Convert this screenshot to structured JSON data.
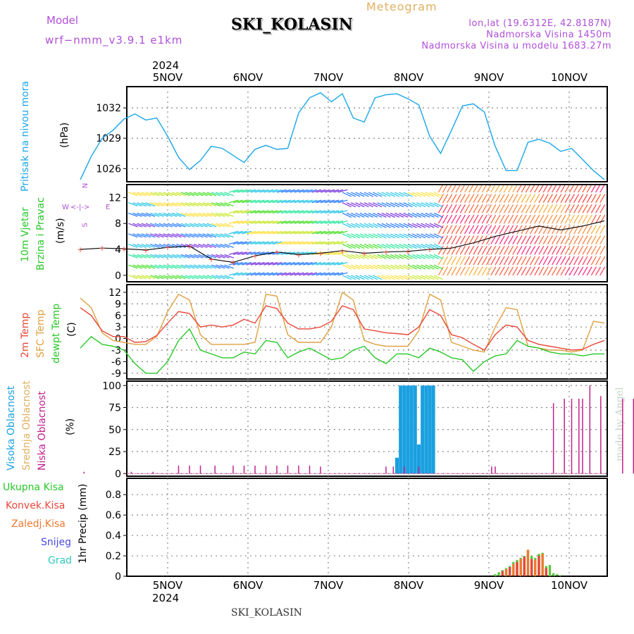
{
  "header": {
    "model_label": "Model",
    "model_name": "wrf−nmm_v3.9.1  e1km",
    "title": "SKI_KOLASIN",
    "meteogram": "Meteogram",
    "lonlat": "lon,lat (19.6312E, 42.8187N)",
    "elevation": "Nadmorska Visina 1450m",
    "model_elevation": "Nadmorska Visina u modelu 1683.27m",
    "year_top": "2024",
    "year_bottom": "2024",
    "footer_station": "SKI_KOLASIN",
    "watermark": "made by Angel"
  },
  "colors": {
    "pressure": "#1aa7e8",
    "t2m": "#e8473a",
    "sfc": "#e0a040",
    "dew": "#28c828",
    "high_cloud": "#1aa0e0",
    "low_cloud": "#c0208c",
    "precip_total": "#5cc840",
    "precip_conv": "#e8473a",
    "precip_frz": "#f07830",
    "snow": "#4a48e0",
    "grad": "#30c8c0",
    "purple_text": "#b04fd8"
  },
  "chart_data": [
    {
      "type": "line",
      "panel": "pressure",
      "ylabel_main": "Pritisak na nivou mora",
      "ylabel_unit": "(hPa)",
      "x_tick_labels": [
        "5NOV",
        "6NOV",
        "7NOV",
        "8NOV",
        "9NOV",
        "10NOV"
      ],
      "yticks": [
        1026,
        1029,
        1032
      ],
      "ylim": [
        1024.7,
        1034.1
      ],
      "grid": true,
      "series": [
        {
          "x_hours": [
            0,
            3,
            6,
            9,
            12,
            15,
            18,
            21,
            24,
            27,
            30,
            33,
            36,
            39,
            42,
            45,
            48,
            51,
            54,
            57,
            60,
            63,
            66,
            69,
            72,
            75,
            78,
            81,
            84,
            87,
            90,
            93,
            96,
            99,
            102,
            105,
            108,
            111,
            114,
            117,
            120,
            123,
            126,
            129,
            132,
            135,
            138,
            141,
            144
          ],
          "values": [
            1024.9,
            1027.2,
            1029.0,
            1029.8,
            1030.9,
            1031.4,
            1030.8,
            1031.0,
            1029.2,
            1027.1,
            1025.9,
            1026.8,
            1028.2,
            1028.0,
            1027.3,
            1026.6,
            1027.9,
            1028.3,
            1027.9,
            1028.0,
            1031.5,
            1033.0,
            1033.5,
            1032.6,
            1033.4,
            1031.0,
            1030.6,
            1033.0,
            1033.3,
            1033.4,
            1032.9,
            1032.3,
            1029.2,
            1027.5,
            1029.8,
            1032.2,
            1032.4,
            1031.6,
            1028.2,
            1025.8,
            1025.8,
            1028.6,
            1028.9,
            1028.5,
            1027.7,
            1028.0,
            1026.9,
            1025.8,
            1024.9
          ]
        }
      ]
    },
    {
      "type": "line",
      "panel": "wind",
      "ylabel_main": "10m Vjetar",
      "ylabel_main2": "Brzina i Pravac",
      "ylabel_unit": "(m/s)",
      "compass_n": "N",
      "compass_s": "S",
      "compass_w": "W",
      "compass_e": "E",
      "yticks": [
        0,
        4,
        8,
        12
      ],
      "ylim": [
        -1,
        14
      ],
      "grid": true,
      "series": [
        {
          "name": "speed",
          "x_hours": [
            0,
            6,
            12,
            18,
            24,
            30,
            36,
            42,
            48,
            54,
            60,
            66,
            72,
            78,
            84,
            90,
            96,
            102,
            108,
            114,
            120,
            126,
            132,
            138,
            144
          ],
          "values": [
            4.0,
            4.2,
            4.1,
            3.9,
            4.3,
            4.5,
            2.5,
            2.0,
            3.0,
            3.6,
            3.2,
            3.4,
            3.8,
            3.4,
            3.6,
            3.7,
            4.0,
            4.2,
            5.0,
            6.0,
            6.8,
            7.6,
            7.0,
            7.6,
            8.4
          ]
        }
      ]
    },
    {
      "type": "line",
      "panel": "temperature",
      "ylabel_lines": [
        "2m Temp",
        "SFC Temp",
        "dewpt Temp"
      ],
      "ylabel_unit": "(C)",
      "yticks": [
        -9,
        -6,
        -3,
        0,
        3,
        6,
        9,
        12
      ],
      "ylim": [
        -10.5,
        14
      ],
      "grid": true,
      "series": [
        {
          "name": "2m Temp",
          "x_hours": [
            0,
            3,
            6,
            9,
            12,
            15,
            18,
            21,
            24,
            27,
            30,
            33,
            36,
            39,
            42,
            45,
            48,
            51,
            54,
            57,
            60,
            63,
            66,
            69,
            72,
            75,
            78,
            81,
            84,
            87,
            90,
            93,
            96,
            99,
            102,
            105,
            108,
            111,
            114,
            117,
            120,
            123,
            126,
            129,
            132,
            135,
            138,
            141,
            144
          ],
          "values": [
            8.0,
            6.0,
            2.0,
            0.5,
            0.5,
            -1.0,
            -0.8,
            0.8,
            4.0,
            7.0,
            6.5,
            3.0,
            3.5,
            3.0,
            3.5,
            5.0,
            4.0,
            8.5,
            7.8,
            4.0,
            2.5,
            2.5,
            3.0,
            4.5,
            8.5,
            7.5,
            2.5,
            2.0,
            1.5,
            1.3,
            1.0,
            3.0,
            7.5,
            6.0,
            1.0,
            0.2,
            -1.5,
            -3.0,
            1.0,
            3.5,
            3.0,
            -0.5,
            -1.5,
            -2.0,
            -2.5,
            -3.0,
            -2.8,
            -1.5,
            -0.5
          ]
        },
        {
          "name": "SFC Temp",
          "x_hours": [
            0,
            3,
            6,
            9,
            12,
            15,
            18,
            21,
            24,
            27,
            30,
            33,
            36,
            39,
            42,
            45,
            48,
            51,
            54,
            57,
            60,
            63,
            66,
            69,
            72,
            75,
            78,
            81,
            84,
            87,
            90,
            93,
            96,
            99,
            102,
            105,
            108,
            111,
            114,
            117,
            120,
            123,
            126,
            129,
            132,
            135,
            138,
            141,
            144
          ],
          "values": [
            10.5,
            8.0,
            1.5,
            -0.5,
            -1.0,
            -1.5,
            -1.5,
            0.5,
            7.0,
            11.5,
            10.0,
            1.0,
            -1.5,
            -1.5,
            -1.5,
            -1.5,
            -1.0,
            11.5,
            11.0,
            1.0,
            -1.0,
            -1.0,
            -1.0,
            3.0,
            12.0,
            10.0,
            -0.5,
            -1.5,
            -2.0,
            -2.0,
            -2.0,
            2.0,
            11.5,
            10.0,
            -1.0,
            -2.0,
            -3.0,
            -3.5,
            3.0,
            8.0,
            7.5,
            -2.0,
            -2.5,
            -3.0,
            -3.0,
            -3.5,
            -3.0,
            4.5,
            4.0
          ]
        },
        {
          "name": "dewpt Temp",
          "x_hours": [
            0,
            3,
            6,
            9,
            12,
            15,
            18,
            21,
            24,
            27,
            30,
            33,
            36,
            39,
            42,
            45,
            48,
            51,
            54,
            57,
            60,
            63,
            66,
            69,
            72,
            75,
            78,
            81,
            84,
            87,
            90,
            93,
            96,
            99,
            102,
            105,
            108,
            111,
            114,
            117,
            120,
            123,
            126,
            129,
            132,
            135,
            138,
            141,
            144
          ],
          "values": [
            -2.5,
            0.5,
            -1.5,
            -2.0,
            -3.0,
            -6.5,
            -9.0,
            -9.0,
            -6.0,
            -0.5,
            2.5,
            -3.0,
            -4.0,
            -5.0,
            -5.0,
            -3.5,
            -4.0,
            -0.5,
            -1.0,
            -5.0,
            -3.5,
            -2.5,
            -4.0,
            -5.5,
            -5.0,
            -3.0,
            -2.0,
            -5.0,
            -6.5,
            -4.0,
            -4.0,
            -5.0,
            -2.5,
            -3.5,
            -5.0,
            -5.5,
            -8.5,
            -6.0,
            -4.5,
            -4.0,
            -0.5,
            -2.0,
            -2.5,
            -3.5,
            -4.0,
            -4.0,
            -4.5,
            -4.0,
            -4.0
          ]
        }
      ]
    },
    {
      "type": "bar",
      "panel": "clouds",
      "ylabel_lines": [
        "Visoka Oblacnost",
        "Srednja Oblacnost",
        "Niska Oblacnost"
      ],
      "ylabel_unit": "(%)",
      "yticks": [
        0,
        25,
        50,
        75,
        100
      ],
      "ylim": [
        -3,
        105
      ],
      "grid": true,
      "series": [
        {
          "name": "Visoka Oblacnost",
          "x_hours": [
            87,
            88,
            89,
            90,
            91,
            92,
            93,
            94,
            95,
            96,
            97,
            98
          ],
          "values": [
            18,
            100,
            100,
            100,
            100,
            100,
            33,
            100,
            100,
            100,
            100,
            0
          ]
        },
        {
          "name": "Niska Oblacnost",
          "x_hours": [
            1,
            14,
            20,
            27,
            30,
            33,
            37,
            42,
            45,
            48,
            51,
            54,
            57,
            60,
            63,
            66,
            84,
            86,
            89,
            93,
            113,
            114,
            130,
            133,
            135,
            137,
            138,
            140,
            143,
            149,
            152,
            155,
            157
          ],
          "values": [
            2,
            2,
            2,
            9,
            9,
            9,
            9,
            9,
            9,
            9,
            9,
            9,
            9,
            9,
            9,
            8,
            8,
            8,
            8,
            8,
            8,
            8,
            80,
            85,
            85,
            85,
            85,
            100,
            88,
            85,
            85,
            85,
            2
          ]
        }
      ]
    },
    {
      "type": "bar",
      "panel": "precip",
      "legend": [
        "Ukupna  Kisa",
        "Konvek.Kisa",
        "Zaledj.Kisa",
        "Snijeg",
        "Grad"
      ],
      "ylabel_unit": "1hr Precip (mm)",
      "yticks": [
        0,
        0.2,
        0.4,
        0.6,
        0.8
      ],
      "ylim": [
        0,
        0.96
      ],
      "grid": true,
      "series": [
        {
          "name": "Ukupna  Kisa",
          "x_hours": [
            114,
            115,
            116,
            117,
            118,
            119,
            120,
            121,
            122,
            123,
            124,
            125,
            126,
            127,
            128,
            129,
            130,
            131,
            132
          ],
          "values": [
            0.02,
            0.04,
            0.06,
            0.08,
            0.1,
            0.14,
            0.16,
            0.18,
            0.2,
            0.24,
            0.2,
            0.18,
            0.22,
            0.23,
            0.1,
            0.11,
            0.03,
            0.02,
            0.01
          ]
        },
        {
          "name": "Konvek.Kisa",
          "x_hours": [
            116,
            118,
            120,
            122,
            124,
            126,
            128
          ],
          "values": [
            0.05,
            0.09,
            0.14,
            0.19,
            0.17,
            0.2,
            0.08
          ]
        },
        {
          "name": "Zaledj.Kisa",
          "x_hours": [
            117,
            119,
            121,
            123,
            125,
            127
          ],
          "values": [
            0.07,
            0.12,
            0.17,
            0.26,
            0.16,
            0.22
          ]
        }
      ]
    }
  ]
}
